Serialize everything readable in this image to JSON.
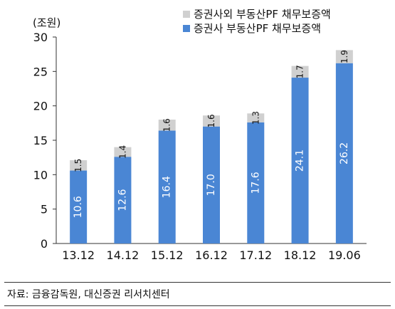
{
  "chart_data": {
    "type": "bar",
    "stacked": true,
    "unit_label": "(조원)",
    "categories": [
      "13.12",
      "14.12",
      "15.12",
      "16.12",
      "17.12",
      "18.12",
      "19.06"
    ],
    "series": [
      {
        "name": "증권사 부동산PF 채무보증액",
        "values": [
          10.6,
          12.6,
          16.4,
          17.0,
          17.6,
          24.1,
          26.2
        ],
        "color": "#4a86d4"
      },
      {
        "name": "증권사외 부동산PF 채무보증액",
        "values": [
          1.5,
          1.4,
          1.6,
          1.6,
          1.3,
          1.7,
          1.9
        ],
        "color": "#d0d0d0"
      }
    ],
    "ylim": [
      0,
      30
    ],
    "yticks": [
      0,
      5,
      10,
      15,
      20,
      25,
      30
    ],
    "legend_position": "top-right",
    "grid": false
  },
  "source": "자료: 금융감독원, 대신증권 리서치센터"
}
